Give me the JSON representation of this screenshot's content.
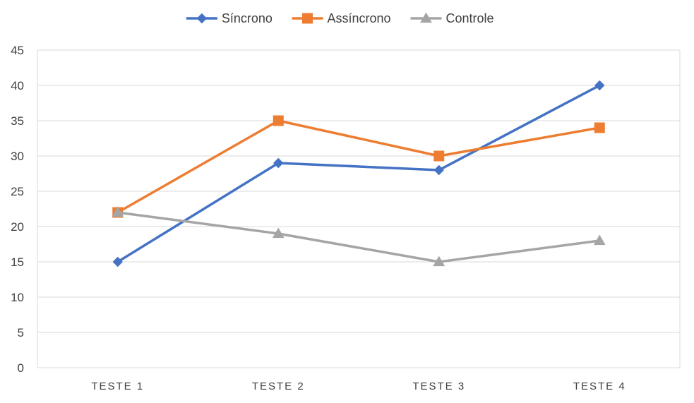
{
  "chart_data": {
    "type": "line",
    "categories": [
      "TESTE 1",
      "TESTE 2",
      "TESTE 3",
      "TESTE 4"
    ],
    "series": [
      {
        "name": "Síncrono",
        "values": [
          15,
          29,
          28,
          40
        ],
        "color": "#4472C4",
        "marker": "diamond"
      },
      {
        "name": "Assíncrono",
        "values": [
          22,
          35,
          30,
          34
        ],
        "color": "#ED7D31",
        "marker": "square"
      },
      {
        "name": "Controle",
        "values": [
          22,
          19,
          15,
          18
        ],
        "color": "#A5A5A5",
        "marker": "triangle"
      }
    ],
    "ylim": [
      0,
      45
    ],
    "yticks": [
      0,
      5,
      10,
      15,
      20,
      25,
      30,
      35,
      40,
      45
    ],
    "title": "",
    "xlabel": "",
    "ylabel": "",
    "grid": true,
    "legend_position": "top"
  }
}
